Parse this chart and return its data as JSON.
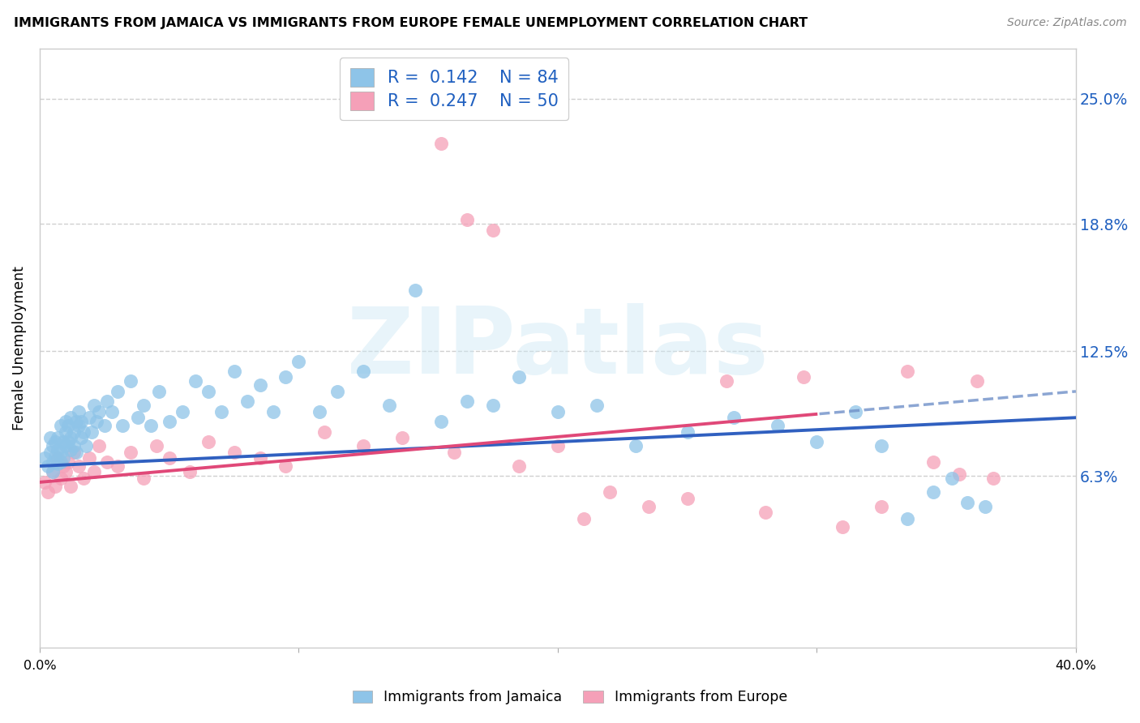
{
  "title": "IMMIGRANTS FROM JAMAICA VS IMMIGRANTS FROM EUROPE FEMALE UNEMPLOYMENT CORRELATION CHART",
  "source": "Source: ZipAtlas.com",
  "ylabel": "Female Unemployment",
  "yticks": [
    0.063,
    0.125,
    0.188,
    0.25
  ],
  "ytick_labels": [
    "6.3%",
    "12.5%",
    "18.8%",
    "25.0%"
  ],
  "xlim": [
    0.0,
    0.4
  ],
  "ylim": [
    -0.022,
    0.275
  ],
  "jamaica_R": "0.142",
  "jamaica_N": "84",
  "europe_R": "0.247",
  "europe_N": "50",
  "blue_scatter_color": "#8ec4e8",
  "pink_scatter_color": "#f5a0b8",
  "blue_line_color": "#3060c0",
  "pink_line_color": "#e04878",
  "dash_line_color": "#7090c8",
  "legend_text_color": "#2060c0",
  "watermark_text": "ZIPatlas",
  "watermark_color": "#cce8f4",
  "grid_color": "#d0d0d0",
  "border_color": "#cccccc",
  "jamaica_x": [
    0.002,
    0.003,
    0.004,
    0.004,
    0.005,
    0.005,
    0.005,
    0.006,
    0.006,
    0.007,
    0.007,
    0.007,
    0.008,
    0.008,
    0.008,
    0.009,
    0.009,
    0.01,
    0.01,
    0.01,
    0.011,
    0.011,
    0.012,
    0.012,
    0.012,
    0.013,
    0.013,
    0.014,
    0.014,
    0.015,
    0.015,
    0.016,
    0.016,
    0.017,
    0.018,
    0.019,
    0.02,
    0.021,
    0.022,
    0.023,
    0.025,
    0.026,
    0.028,
    0.03,
    0.032,
    0.035,
    0.038,
    0.04,
    0.043,
    0.046,
    0.05,
    0.055,
    0.06,
    0.065,
    0.07,
    0.075,
    0.08,
    0.085,
    0.09,
    0.095,
    0.1,
    0.108,
    0.115,
    0.125,
    0.135,
    0.145,
    0.155,
    0.165,
    0.175,
    0.185,
    0.2,
    0.215,
    0.23,
    0.25,
    0.268,
    0.285,
    0.3,
    0.315,
    0.325,
    0.335,
    0.345,
    0.352,
    0.358,
    0.365
  ],
  "jamaica_y": [
    0.072,
    0.068,
    0.075,
    0.082,
    0.07,
    0.078,
    0.065,
    0.08,
    0.073,
    0.076,
    0.069,
    0.082,
    0.075,
    0.088,
    0.07,
    0.08,
    0.072,
    0.085,
    0.078,
    0.09,
    0.08,
    0.088,
    0.076,
    0.082,
    0.092,
    0.085,
    0.078,
    0.09,
    0.075,
    0.088,
    0.095,
    0.082,
    0.09,
    0.085,
    0.078,
    0.092,
    0.085,
    0.098,
    0.09,
    0.095,
    0.088,
    0.1,
    0.095,
    0.105,
    0.088,
    0.11,
    0.092,
    0.098,
    0.088,
    0.105,
    0.09,
    0.095,
    0.11,
    0.105,
    0.095,
    0.115,
    0.1,
    0.108,
    0.095,
    0.112,
    0.12,
    0.095,
    0.105,
    0.115,
    0.098,
    0.155,
    0.09,
    0.1,
    0.098,
    0.112,
    0.095,
    0.098,
    0.078,
    0.085,
    0.092,
    0.088,
    0.08,
    0.095,
    0.078,
    0.042,
    0.055,
    0.062,
    0.05,
    0.048
  ],
  "europe_x": [
    0.002,
    0.003,
    0.005,
    0.006,
    0.007,
    0.008,
    0.009,
    0.01,
    0.011,
    0.012,
    0.013,
    0.015,
    0.017,
    0.019,
    0.021,
    0.023,
    0.026,
    0.03,
    0.035,
    0.04,
    0.045,
    0.05,
    0.058,
    0.065,
    0.075,
    0.085,
    0.095,
    0.11,
    0.125,
    0.14,
    0.155,
    0.16,
    0.165,
    0.175,
    0.185,
    0.2,
    0.21,
    0.22,
    0.235,
    0.25,
    0.265,
    0.28,
    0.295,
    0.31,
    0.325,
    0.335,
    0.345,
    0.355,
    0.362,
    0.368
  ],
  "europe_y": [
    0.06,
    0.055,
    0.065,
    0.058,
    0.072,
    0.062,
    0.068,
    0.065,
    0.07,
    0.058,
    0.075,
    0.068,
    0.062,
    0.072,
    0.065,
    0.078,
    0.07,
    0.068,
    0.075,
    0.062,
    0.078,
    0.072,
    0.065,
    0.08,
    0.075,
    0.072,
    0.068,
    0.085,
    0.078,
    0.082,
    0.228,
    0.075,
    0.19,
    0.185,
    0.068,
    0.078,
    0.042,
    0.055,
    0.048,
    0.052,
    0.11,
    0.045,
    0.112,
    0.038,
    0.048,
    0.115,
    0.07,
    0.064,
    0.11,
    0.062
  ]
}
